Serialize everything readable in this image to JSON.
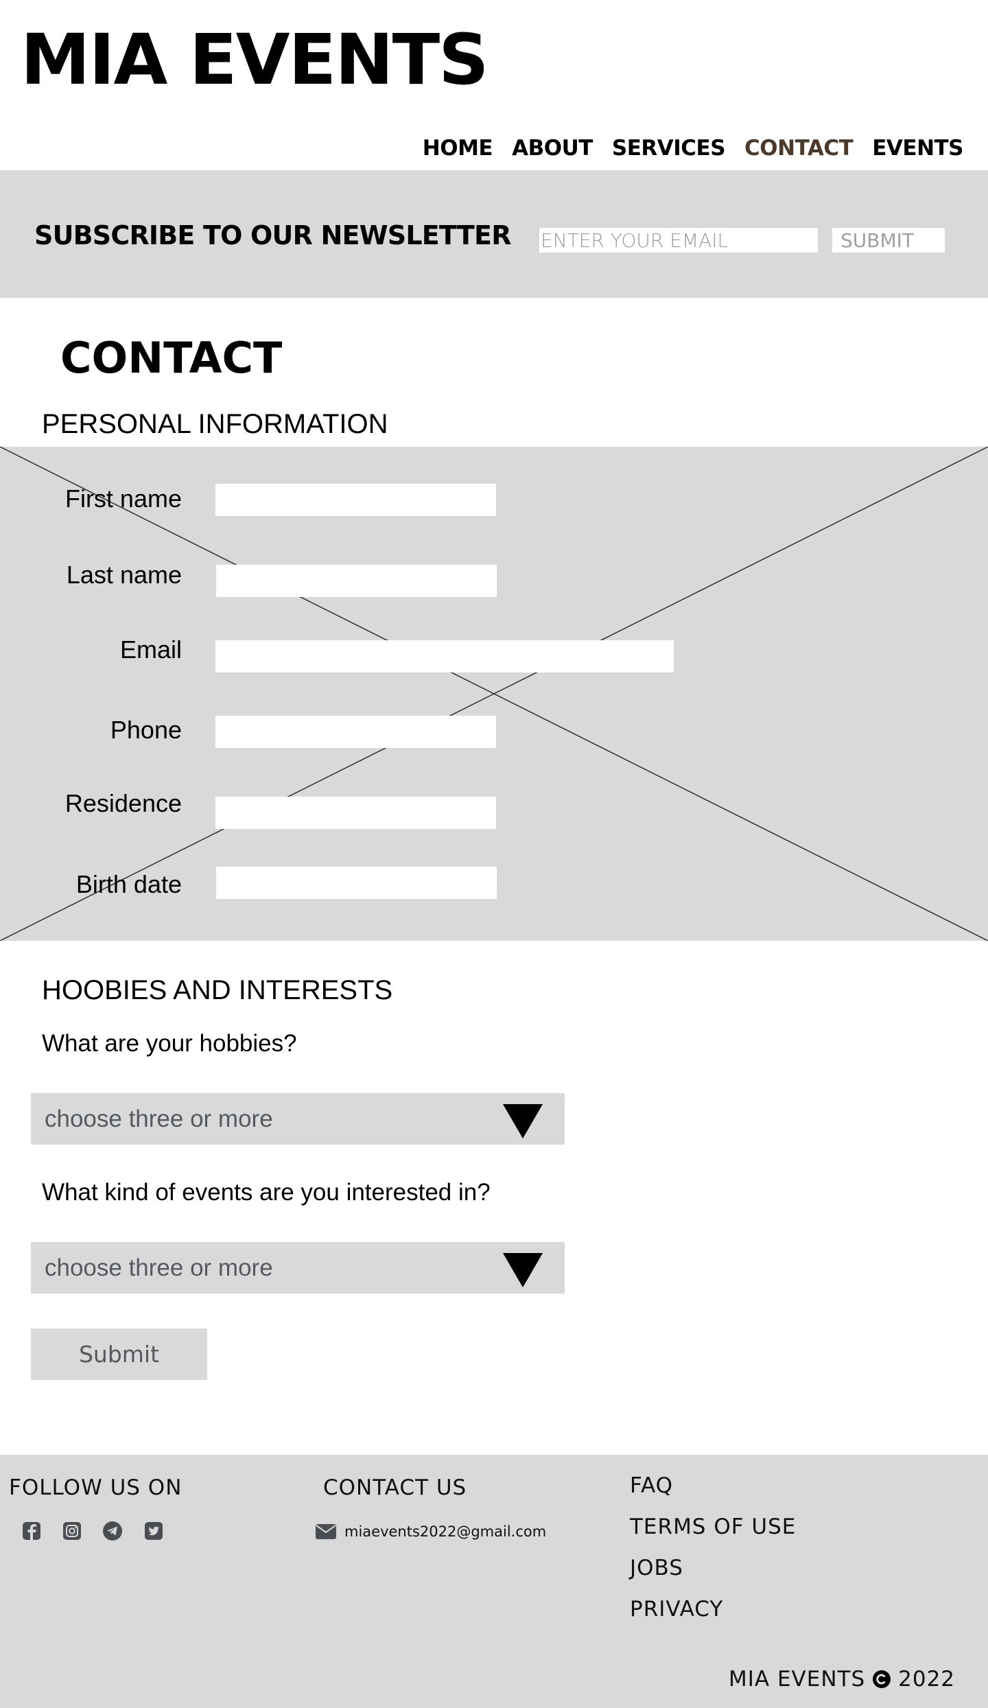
{
  "header": {
    "logo": "MIA EVENTS",
    "nav": [
      "HOME",
      "ABOUT",
      "SERVICES",
      "CONTACT",
      "EVENTS"
    ],
    "active_nav": "CONTACT",
    "active_color": "#4b3a2a"
  },
  "newsletter": {
    "title": "SUBSCRIBE TO OUR NEWSLETTER",
    "email_placeholder": "ENTER YOUR EMAIL",
    "submit_label": "SUBMIT"
  },
  "contact": {
    "title": "CONTACT",
    "personal_heading": "PERSONAL INFORMATION",
    "fields": {
      "first_name": "First name",
      "last_name": "Last name",
      "email": "Email",
      "phone": "Phone",
      "residence": "Residence",
      "birth_date": "Birth date"
    },
    "hobbies_heading": "HOOBIES AND INTERESTS",
    "hobbies_question": "What are your hobbies?",
    "hobbies_select": "choose three or more",
    "events_question": "What kind of events are you interested in?",
    "events_select": "choose three or more",
    "submit_label": "Submit"
  },
  "footer": {
    "follow_heading": "FOLLOW US ON",
    "social_icons": [
      "facebook-icon",
      "instagram-icon",
      "telegram-icon",
      "twitter-icon"
    ],
    "contact_heading": "CONTACT US",
    "email": "miaevents2022@gmail.com",
    "links": [
      "FAQ",
      "TERMS OF USE",
      "JOBS",
      "PRIVACY"
    ],
    "copyright_brand": "MIA EVENTS",
    "copyright_year": "2022"
  },
  "colors": {
    "panel_gray": "#d9d9d9",
    "placeholder_gray": "#9a9a9a",
    "select_text": "#555a60"
  }
}
